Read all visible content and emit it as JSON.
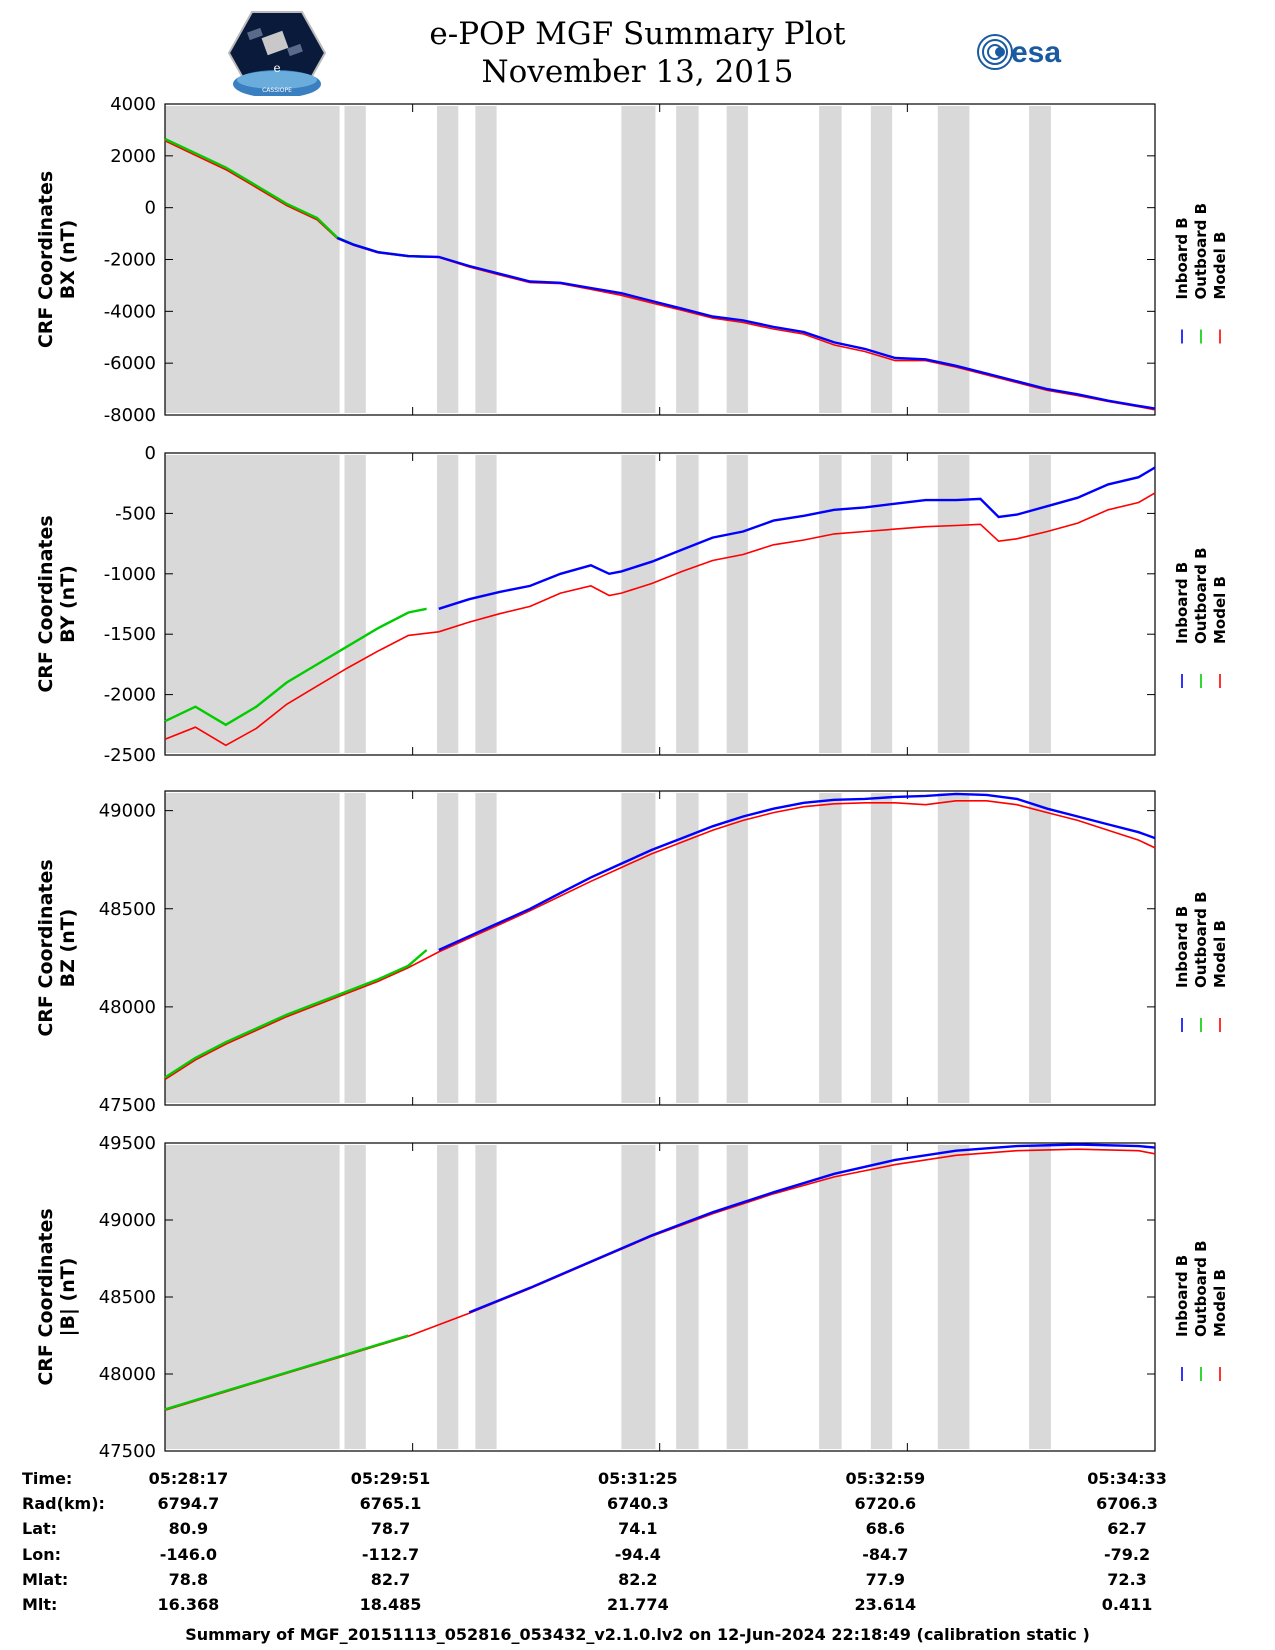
{
  "header": {
    "title": "e-POP MGF Summary Plot",
    "date": "November 13, 2015",
    "logo_left_text": "CASSIOPE",
    "logo_left_glyph": "e",
    "logo_right_text": "esa"
  },
  "legend": {
    "entries": [
      "Inboard B",
      "Outboard B",
      "Model B"
    ],
    "colors": [
      "#0000ff",
      "#00cc00",
      "#ff0000"
    ]
  },
  "chart_data": [
    {
      "type": "line",
      "ylabel_line1": "CRF Coordinates",
      "ylabel_line2": "BX (nT)",
      "ylim": [
        -8000,
        4000
      ],
      "yticks": [
        4000,
        2000,
        0,
        -2000,
        -4000,
        -6000,
        -8000
      ],
      "x_minutes": [
        0,
        0.5,
        1,
        1.5,
        2,
        2.5,
        2.83,
        3.1,
        3.5,
        4,
        4.5,
        5,
        5.5,
        6,
        6.5,
        7,
        7.5,
        8,
        8.5,
        9,
        9.5,
        10,
        10.5,
        11,
        11.5,
        12,
        12.5,
        13,
        13.5,
        14,
        14.5,
        15,
        15.5,
        16,
        16.27
      ],
      "series": [
        {
          "name": "Inboard B",
          "from_minute": 2.83,
          "values": [
            2600,
            2050,
            1500,
            800,
            100,
            -450,
            -1170,
            -1430,
            -1720,
            -1870,
            -1900,
            -2250,
            -2550,
            -2850,
            -2900,
            -3100,
            -3300,
            -3600,
            -3900,
            -4200,
            -4350,
            -4600,
            -4800,
            -5200,
            -5450,
            -5800,
            -5850,
            -6100,
            -6400,
            -6700,
            -7000,
            -7200,
            -7450,
            -7650,
            -7750
          ]
        },
        {
          "name": "Outboard B",
          "to_minute": 4.3,
          "values": [
            2650,
            2100,
            1550,
            850,
            150,
            -400,
            -1150,
            -1420,
            -1720,
            -1870,
            -1900,
            -2250,
            -2550,
            -2850,
            -2900,
            -3100,
            -3300,
            -3600,
            -3900,
            -4200,
            -4350,
            -4600,
            -4800,
            -5200,
            -5450,
            -5800,
            -5850,
            -6100,
            -6400,
            -6700,
            -7000,
            -7200,
            -7450,
            -7650,
            -7750
          ]
        },
        {
          "name": "Model B",
          "values": [
            2580,
            2020,
            1470,
            780,
            80,
            -470,
            -1190,
            -1450,
            -1740,
            -1890,
            -1920,
            -2290,
            -2600,
            -2890,
            -2930,
            -3150,
            -3380,
            -3680,
            -3960,
            -4260,
            -4430,
            -4680,
            -4880,
            -5300,
            -5550,
            -5900,
            -5900,
            -6150,
            -6450,
            -6750,
            -7050,
            -7250,
            -7480,
            -7680,
            -7800
          ]
        }
      ]
    },
    {
      "type": "line",
      "ylabel_line1": "CRF Coordinates",
      "ylabel_line2": "BY (nT)",
      "ylim": [
        -2500,
        0
      ],
      "yticks": [
        0,
        -500,
        -1000,
        -1500,
        -2000,
        -2500
      ],
      "x_minutes": [
        0,
        0.5,
        1,
        1.5,
        2,
        2.5,
        3,
        3.5,
        4,
        4.5,
        5,
        5.5,
        6,
        6.5,
        7,
        7.3,
        7.5,
        8,
        8.5,
        9,
        9.5,
        10,
        10.5,
        11,
        11.5,
        12,
        12.5,
        13,
        13.4,
        13.7,
        14,
        14.5,
        15,
        15.5,
        16,
        16.27
      ],
      "series": [
        {
          "name": "Inboard B",
          "from_minute": 4.3,
          "values": [
            -2220,
            -2100,
            -2250,
            -2100,
            -1900,
            -1750,
            -1600,
            -1450,
            -1320,
            -1290,
            -1210,
            -1150,
            -1100,
            -1000,
            -930,
            -1000,
            -980,
            -900,
            -800,
            -700,
            -650,
            -560,
            -520,
            -470,
            -450,
            -420,
            -390,
            -390,
            -380,
            -530,
            -510,
            -440,
            -370,
            -260,
            -200,
            -120
          ]
        },
        {
          "name": "Outboard B",
          "to_minute": 4.3,
          "values": [
            -2220,
            -2100,
            -2250,
            -2100,
            -1900,
            -1750,
            -1600,
            -1450,
            -1320,
            -1290,
            -1210,
            -1150,
            -1100,
            -1000,
            -930,
            -1000,
            -980,
            -900,
            -800,
            -700,
            -650,
            -560,
            -520,
            -470,
            -450,
            -420,
            -390,
            -390,
            -380,
            -530,
            -510,
            -440,
            -370,
            -260,
            -200,
            -120
          ]
        },
        {
          "name": "Model B",
          "values": [
            -2370,
            -2270,
            -2420,
            -2280,
            -2080,
            -1930,
            -1780,
            -1640,
            -1510,
            -1480,
            -1400,
            -1330,
            -1270,
            -1160,
            -1100,
            -1180,
            -1160,
            -1080,
            -980,
            -890,
            -840,
            -760,
            -720,
            -670,
            -650,
            -630,
            -610,
            -600,
            -590,
            -730,
            -710,
            -650,
            -580,
            -470,
            -410,
            -330
          ]
        }
      ]
    },
    {
      "type": "line",
      "ylabel_line1": "CRF Coordinates",
      "ylabel_line2": "BZ (nT)",
      "ylim": [
        47500,
        49100
      ],
      "yticks": [
        49000,
        48500,
        48000,
        47500
      ],
      "x_minutes": [
        0,
        0.5,
        1,
        1.5,
        2,
        2.5,
        3,
        3.5,
        4,
        4.5,
        5,
        5.5,
        6,
        6.5,
        7,
        7.5,
        8,
        8.5,
        9,
        9.5,
        10,
        10.5,
        11,
        11.5,
        12,
        12.5,
        13,
        13.5,
        14,
        14.5,
        15,
        15.5,
        16,
        16.27
      ],
      "series": [
        {
          "name": "Inboard B",
          "from_minute": 4.3,
          "values": [
            47640,
            47740,
            47820,
            47890,
            47960,
            48020,
            48080,
            48140,
            48210,
            48290,
            48360,
            48430,
            48500,
            48580,
            48660,
            48730,
            48800,
            48860,
            48920,
            48970,
            49010,
            49040,
            49055,
            49060,
            49070,
            49075,
            49085,
            49080,
            49060,
            49010,
            48970,
            48930,
            48890,
            48860
          ]
        },
        {
          "name": "Outboard B",
          "to_minute": 4.3,
          "values": [
            47640,
            47740,
            47820,
            47890,
            47960,
            48020,
            48080,
            48140,
            48210,
            48290,
            48360,
            48430,
            48500,
            48580,
            48660,
            48730,
            48800,
            48860,
            48920,
            48970,
            49010,
            49040,
            49055,
            49060,
            49070,
            49075,
            49085,
            49080,
            49060,
            49010,
            48970,
            48930,
            48890,
            48860
          ]
        },
        {
          "name": "Model B",
          "values": [
            47630,
            47730,
            47810,
            47880,
            47950,
            48010,
            48070,
            48130,
            48200,
            48280,
            48350,
            48420,
            48490,
            48565,
            48640,
            48710,
            48780,
            48840,
            48900,
            48950,
            48990,
            49020,
            49035,
            49040,
            49040,
            49030,
            49050,
            49050,
            49030,
            48990,
            48950,
            48900,
            48850,
            48810
          ]
        }
      ]
    },
    {
      "type": "line",
      "ylabel_line1": "CRF Coordinates",
      "ylabel_line2": "|B| (nT)",
      "ylim": [
        47500,
        49500
      ],
      "yticks": [
        49500,
        49000,
        48500,
        48000,
        47500
      ],
      "x_minutes": [
        0,
        1,
        2,
        3,
        4,
        5,
        6,
        7,
        8,
        9,
        10,
        11,
        12,
        13,
        14,
        15,
        16,
        16.27
      ],
      "series": [
        {
          "name": "Inboard B",
          "from_minute": 4.3,
          "values": [
            47770,
            47890,
            48010,
            48130,
            48250,
            48400,
            48560,
            48730,
            48900,
            49050,
            49180,
            49300,
            49390,
            49450,
            49480,
            49490,
            49480,
            49470
          ]
        },
        {
          "name": "Outboard B",
          "to_minute": 4.3,
          "values": [
            47770,
            47890,
            48010,
            48130,
            48250,
            48400,
            48560,
            48730,
            48900,
            49050,
            49180,
            49300,
            49390,
            49450,
            49480,
            49490,
            49480,
            49470
          ]
        },
        {
          "name": "Model B",
          "values": [
            47765,
            47885,
            48005,
            48125,
            48245,
            48395,
            48555,
            48725,
            48895,
            49040,
            49170,
            49280,
            49360,
            49420,
            49450,
            49460,
            49450,
            49430
          ]
        }
      ]
    }
  ],
  "gray_bands_minutes": [
    [
      0,
      2.87
    ],
    [
      2.95,
      3.3
    ],
    [
      4.47,
      4.82
    ],
    [
      5.1,
      5.45
    ],
    [
      7.5,
      8.06
    ],
    [
      8.4,
      8.77
    ],
    [
      9.23,
      9.58
    ],
    [
      10.75,
      11.12
    ],
    [
      11.6,
      11.95
    ],
    [
      12.7,
      13.22
    ],
    [
      14.2,
      14.56
    ]
  ],
  "x_axis": {
    "minutes_total": 16.27,
    "tick_minutes": [
      0,
      4.07,
      8.13,
      12.2,
      16.27
    ]
  },
  "info_table": {
    "labels": [
      "Time:",
      "Rad(km):",
      "Lat:",
      "Lon:",
      "Mlat:",
      "Mlt:"
    ],
    "rows": [
      [
        "05:28:17",
        "05:29:51",
        "05:31:25",
        "05:32:59",
        "05:34:33"
      ],
      [
        "6794.7",
        "6765.1",
        "6740.3",
        "6720.6",
        "6706.3"
      ],
      [
        "80.9",
        "78.7",
        "74.1",
        "68.6",
        "62.7"
      ],
      [
        "-146.0",
        "-112.7",
        "-94.4",
        "-84.7",
        "-79.2"
      ],
      [
        "78.8",
        "82.7",
        "82.2",
        "77.9",
        "72.3"
      ],
      [
        "16.368",
        "18.485",
        "21.774",
        "23.614",
        "0.411"
      ]
    ]
  },
  "footer": "Summary of MGF_20151113_052816_053432_v2.1.0.lv2 on 12-Jun-2024 22:18:49 (calibration static )"
}
